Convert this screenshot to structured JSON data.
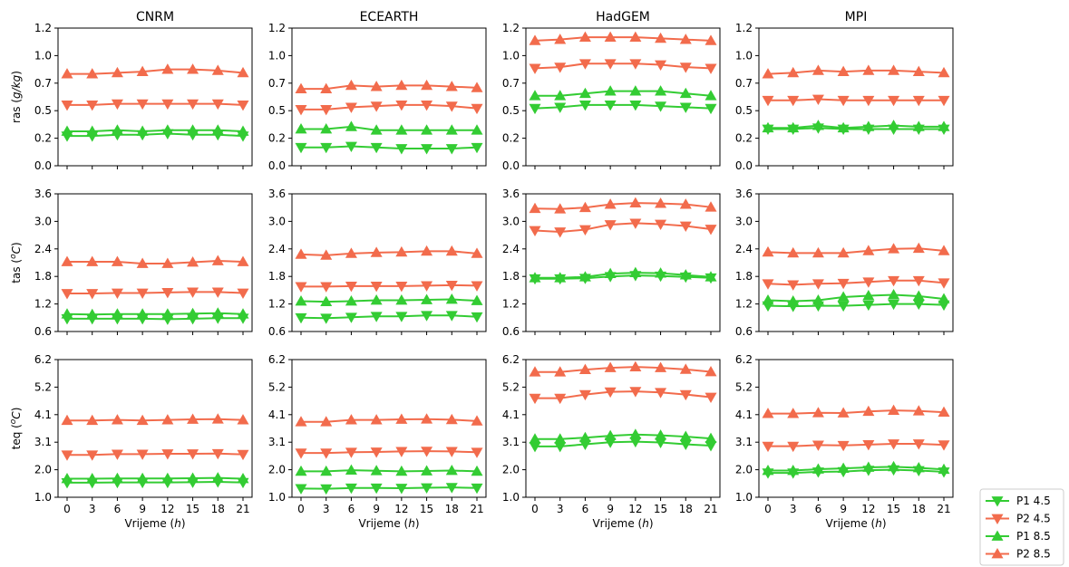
{
  "chart_data": {
    "type": "line",
    "columns": [
      "CNRM",
      "ECEARTH",
      "HadGEM",
      "MPI"
    ],
    "x": [
      0,
      3,
      6,
      9,
      12,
      15,
      18,
      21
    ],
    "x_ticks": [
      "0",
      "3",
      "6",
      "9",
      "12",
      "15",
      "18",
      "21"
    ],
    "xlabel_text": "Vrijeme (",
    "xlabel_unit": "h",
    "xlabel_close": ")",
    "legend_position": "bottom-right",
    "legend": [
      {
        "label": "P1 4.5",
        "color": "#33cc33",
        "marker": "triangle-down"
      },
      {
        "label": "P2 4.5",
        "color": "#f26b4c",
        "marker": "triangle-down"
      },
      {
        "label": "P1 8.5",
        "color": "#33cc33",
        "marker": "triangle-up"
      },
      {
        "label": "P2 8.5",
        "color": "#f26b4c",
        "marker": "triangle-up"
      }
    ],
    "rows": [
      {
        "ylabel_prefix": "ras (",
        "ylabel_unit": "g/kg",
        "ylabel_suffix": ")",
        "ylabel_superscript": false,
        "ylim": [
          0.0,
          1.2
        ],
        "y_tick_values": [
          0.0,
          0.24,
          0.48,
          0.72,
          0.96,
          1.2
        ],
        "y_tick_labels": [
          "0.0",
          "0.2",
          "0.5",
          "0.7",
          "1.0",
          "1.2"
        ],
        "panels": [
          {
            "P1 4.5": [
              0.26,
              0.26,
              0.27,
              0.27,
              0.28,
              0.27,
              0.27,
              0.26
            ],
            "P2 4.5": [
              0.53,
              0.53,
              0.54,
              0.54,
              0.54,
              0.54,
              0.54,
              0.53
            ],
            "P1 8.5": [
              0.3,
              0.3,
              0.31,
              0.3,
              0.31,
              0.31,
              0.31,
              0.3
            ],
            "P2 8.5": [
              0.8,
              0.8,
              0.81,
              0.82,
              0.84,
              0.84,
              0.83,
              0.81
            ]
          },
          {
            "P1 4.5": [
              0.16,
              0.16,
              0.17,
              0.16,
              0.15,
              0.15,
              0.15,
              0.16
            ],
            "P2 4.5": [
              0.49,
              0.49,
              0.51,
              0.52,
              0.53,
              0.53,
              0.52,
              0.5
            ],
            "P1 8.5": [
              0.32,
              0.32,
              0.34,
              0.31,
              0.31,
              0.31,
              0.31,
              0.31
            ],
            "P2 8.5": [
              0.67,
              0.67,
              0.7,
              0.69,
              0.7,
              0.7,
              0.69,
              0.68
            ]
          },
          {
            "P1 4.5": [
              0.5,
              0.51,
              0.53,
              0.53,
              0.53,
              0.52,
              0.51,
              0.5
            ],
            "P2 4.5": [
              0.85,
              0.86,
              0.89,
              0.89,
              0.89,
              0.88,
              0.86,
              0.85
            ],
            "P1 8.5": [
              0.61,
              0.61,
              0.63,
              0.65,
              0.65,
              0.65,
              0.63,
              0.61
            ],
            "P2 8.5": [
              1.09,
              1.1,
              1.12,
              1.12,
              1.12,
              1.11,
              1.1,
              1.09
            ]
          },
          {
            "P1 4.5": [
              0.32,
              0.32,
              0.33,
              0.32,
              0.32,
              0.32,
              0.32,
              0.32
            ],
            "P2 4.5": [
              0.57,
              0.57,
              0.58,
              0.57,
              0.57,
              0.57,
              0.57,
              0.57
            ],
            "P1 8.5": [
              0.33,
              0.33,
              0.35,
              0.33,
              0.34,
              0.35,
              0.34,
              0.34
            ],
            "P2 8.5": [
              0.8,
              0.81,
              0.83,
              0.82,
              0.83,
              0.83,
              0.82,
              0.81
            ]
          }
        ]
      },
      {
        "ylabel_prefix": "tas (",
        "ylabel_unit": "C",
        "ylabel_suffix": ")",
        "ylabel_superscript": true,
        "ylim": [
          0.6,
          3.6
        ],
        "y_tick_values": [
          0.6,
          1.2,
          1.8,
          2.4,
          3.0,
          3.6
        ],
        "y_tick_labels": [
          "0.6",
          "1.2",
          "1.8",
          "2.4",
          "3.0",
          "3.6"
        ],
        "panels": [
          {
            "P1 4.5": [
              0.88,
              0.88,
              0.88,
              0.88,
              0.87,
              0.88,
              0.89,
              0.89
            ],
            "P2 4.5": [
              1.43,
              1.43,
              1.44,
              1.44,
              1.45,
              1.46,
              1.46,
              1.44
            ],
            "P1 8.5": [
              0.98,
              0.97,
              0.98,
              0.98,
              0.98,
              0.99,
              1.0,
              0.98
            ],
            "P2 8.5": [
              2.12,
              2.12,
              2.12,
              2.08,
              2.08,
              2.11,
              2.14,
              2.12
            ]
          },
          {
            "P1 4.5": [
              0.9,
              0.89,
              0.91,
              0.93,
              0.93,
              0.95,
              0.95,
              0.92
            ],
            "P2 4.5": [
              1.58,
              1.58,
              1.59,
              1.59,
              1.59,
              1.6,
              1.61,
              1.6
            ],
            "P1 8.5": [
              1.26,
              1.25,
              1.26,
              1.28,
              1.28,
              1.29,
              1.3,
              1.27
            ],
            "P2 8.5": [
              2.28,
              2.26,
              2.3,
              2.32,
              2.33,
              2.35,
              2.35,
              2.3
            ]
          },
          {
            "P1 4.5": [
              1.75,
              1.75,
              1.76,
              1.8,
              1.82,
              1.81,
              1.79,
              1.77
            ],
            "P2 4.5": [
              2.8,
              2.77,
              2.82,
              2.93,
              2.96,
              2.94,
              2.9,
              2.83
            ],
            "P1 8.5": [
              1.77,
              1.77,
              1.79,
              1.86,
              1.88,
              1.87,
              1.83,
              1.79
            ],
            "P2 8.5": [
              3.28,
              3.27,
              3.3,
              3.37,
              3.4,
              3.39,
              3.37,
              3.31
            ]
          },
          {
            "P1 4.5": [
              1.16,
              1.15,
              1.16,
              1.16,
              1.18,
              1.2,
              1.2,
              1.18
            ],
            "P2 4.5": [
              1.64,
              1.62,
              1.64,
              1.65,
              1.68,
              1.71,
              1.71,
              1.66
            ],
            "P1 8.5": [
              1.28,
              1.26,
              1.28,
              1.35,
              1.38,
              1.4,
              1.37,
              1.31
            ],
            "P2 8.5": [
              2.33,
              2.31,
              2.31,
              2.31,
              2.36,
              2.4,
              2.41,
              2.36
            ]
          }
        ]
      },
      {
        "ylabel_prefix": "teq (",
        "ylabel_unit": "C",
        "ylabel_suffix": ")",
        "ylabel_superscript": true,
        "ylim": [
          1.0,
          6.2
        ],
        "y_tick_values": [
          1.0,
          2.04,
          3.08,
          4.12,
          5.16,
          6.2
        ],
        "y_tick_labels": [
          "1.0",
          "2.0",
          "3.1",
          "4.1",
          "5.2",
          "6.2"
        ],
        "panels": [
          {
            "P1 4.5": [
              1.55,
              1.55,
              1.56,
              1.56,
              1.56,
              1.57,
              1.58,
              1.56
            ],
            "P2 4.5": [
              2.6,
              2.6,
              2.63,
              2.63,
              2.64,
              2.64,
              2.65,
              2.62
            ],
            "P1 8.5": [
              1.7,
              1.7,
              1.71,
              1.71,
              1.71,
              1.72,
              1.73,
              1.7
            ],
            "P2 8.5": [
              3.9,
              3.9,
              3.92,
              3.9,
              3.92,
              3.94,
              3.95,
              3.92
            ]
          },
          {
            "P1 4.5": [
              1.33,
              1.32,
              1.35,
              1.35,
              1.34,
              1.36,
              1.37,
              1.35
            ],
            "P2 4.5": [
              2.67,
              2.67,
              2.7,
              2.71,
              2.73,
              2.74,
              2.73,
              2.7
            ],
            "P1 8.5": [
              1.98,
              1.98,
              2.02,
              2.0,
              1.98,
              1.99,
              2.01,
              1.98
            ],
            "P2 8.5": [
              3.85,
              3.85,
              3.92,
              3.92,
              3.94,
              3.95,
              3.93,
              3.88
            ]
          },
          {
            "P1 4.5": [
              2.92,
              2.92,
              3.0,
              3.08,
              3.1,
              3.07,
              3.0,
              2.95
            ],
            "P2 4.5": [
              4.74,
              4.74,
              4.88,
              4.98,
              5.0,
              4.96,
              4.88,
              4.78
            ],
            "P1 8.5": [
              3.2,
              3.2,
              3.25,
              3.32,
              3.37,
              3.34,
              3.29,
              3.22
            ],
            "P2 8.5": [
              5.73,
              5.73,
              5.82,
              5.89,
              5.92,
              5.89,
              5.83,
              5.74
            ]
          },
          {
            "P1 4.5": [
              1.92,
              1.92,
              1.96,
              1.97,
              2.02,
              2.04,
              2.01,
              1.96
            ],
            "P2 4.5": [
              2.93,
              2.93,
              2.97,
              2.96,
              2.99,
              3.02,
              3.02,
              2.98
            ],
            "P1 8.5": [
              2.01,
              2.01,
              2.06,
              2.09,
              2.13,
              2.15,
              2.11,
              2.05
            ],
            "P2 8.5": [
              4.16,
              4.16,
              4.19,
              4.18,
              4.24,
              4.28,
              4.26,
              4.21
            ]
          }
        ]
      }
    ]
  }
}
